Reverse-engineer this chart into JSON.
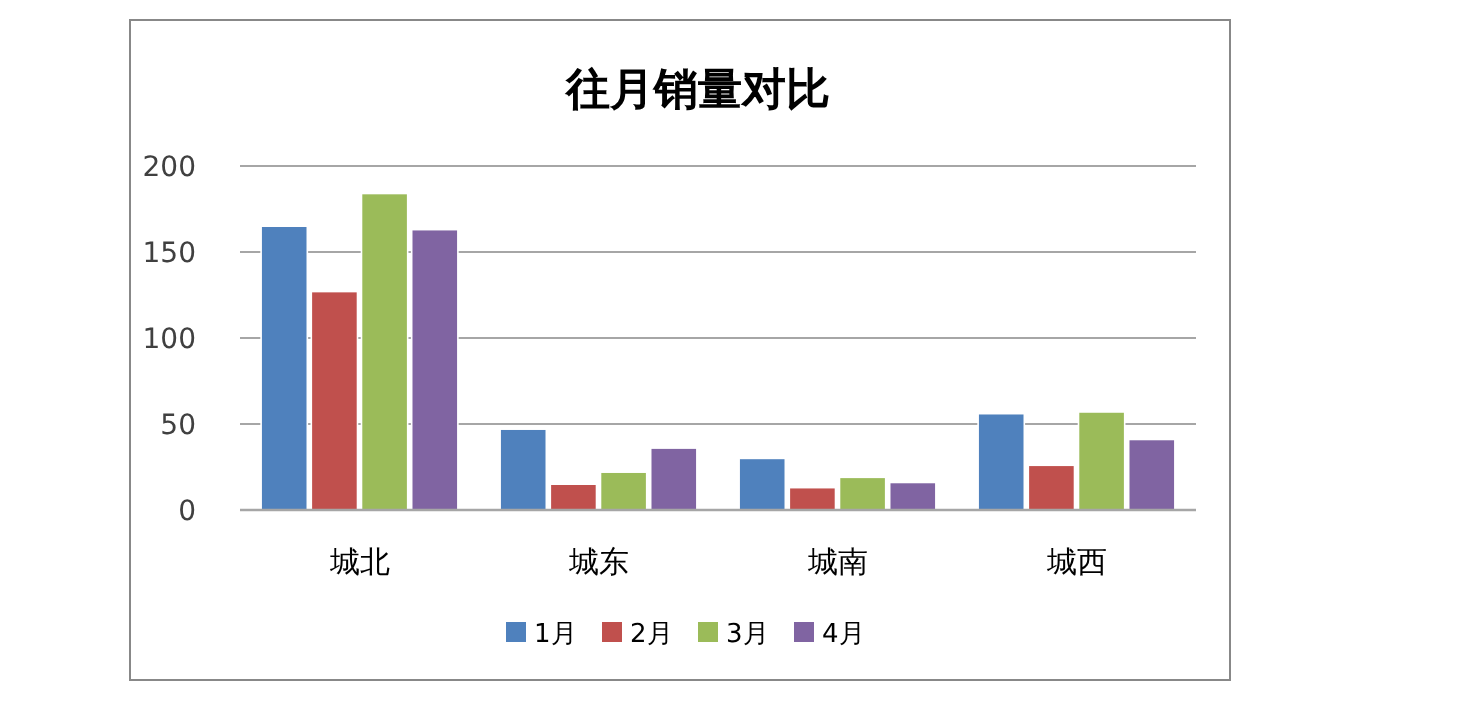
{
  "chart_data": {
    "type": "bar",
    "title": "往月销量对比",
    "categories": [
      "城北",
      "城东",
      "城南",
      "城西"
    ],
    "series": [
      {
        "name": "1月",
        "color": "#4f81bd",
        "values": [
          165,
          47,
          30,
          56
        ]
      },
      {
        "name": "2月",
        "color": "#c0504d",
        "values": [
          127,
          15,
          13,
          26
        ]
      },
      {
        "name": "3月",
        "color": "#9bbb59",
        "values": [
          184,
          22,
          19,
          57
        ]
      },
      {
        "name": "4月",
        "color": "#8064a2",
        "values": [
          163,
          36,
          16,
          41
        ]
      }
    ],
    "ylim": [
      0,
      200
    ],
    "yticks": [
      0,
      50,
      100,
      150,
      200
    ],
    "grid": "y",
    "legend": "bottom"
  }
}
